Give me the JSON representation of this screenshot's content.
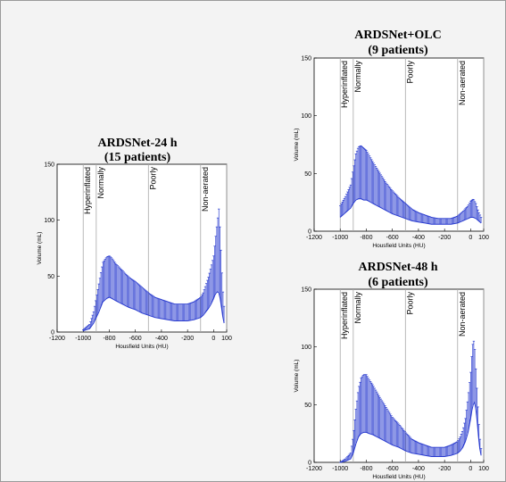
{
  "chart_data": [
    {
      "id": "panel-24h",
      "type": "line",
      "title": "ARDSNet-24 h",
      "subtitle": "(15 patients)",
      "xlabel": "Housfield Units (HU)",
      "ylabel": "Volume (mL)",
      "xlim": [
        -1200,
        100
      ],
      "ylim": [
        0,
        150
      ],
      "xticks": [
        -1200,
        -1000,
        -800,
        -600,
        -400,
        -200,
        0,
        100
      ],
      "yticks": [
        0,
        50,
        100,
        150
      ],
      "grid": false,
      "zones": [
        {
          "label": "Hyperinflated",
          "boundary": -1000
        },
        {
          "label": "Normally",
          "boundary": -900
        },
        {
          "label": "Poorly",
          "boundary": -500
        },
        {
          "label": "Non-aerated",
          "boundary": -100
        },
        {
          "label": "",
          "boundary": 100
        }
      ],
      "series": [
        {
          "x": [
            -1000,
            -950,
            -920,
            -880,
            -850,
            -820,
            -800,
            -780,
            -750,
            -700,
            -650,
            -600,
            -550,
            -500,
            -450,
            -400,
            -350,
            -300,
            -250,
            -200,
            -150,
            -100,
            -80,
            -60,
            -40,
            -20,
            0,
            10,
            20,
            30,
            40,
            50,
            60,
            70,
            80
          ],
          "values": [
            1,
            3,
            8,
            18,
            27,
            30,
            31,
            30,
            28,
            25,
            22,
            20,
            17,
            15,
            13,
            12,
            11,
            10,
            10,
            10,
            11,
            13,
            15,
            18,
            21,
            25,
            30,
            33,
            35,
            36,
            35,
            30,
            22,
            14,
            8
          ],
          "error": [
            1,
            4,
            10,
            25,
            35,
            37,
            37,
            36,
            33,
            30,
            27,
            25,
            23,
            20,
            18,
            17,
            16,
            15,
            15,
            15,
            16,
            18,
            20,
            24,
            28,
            33,
            38,
            46,
            55,
            64,
            75,
            60,
            40,
            25,
            15
          ]
        }
      ]
    },
    {
      "id": "panel-olc",
      "type": "line",
      "title": "ARDSNet+OLC",
      "subtitle": "(9 patients)",
      "xlabel": "Housfield Units (HU)",
      "ylabel": "Volume (mL)",
      "xlim": [
        -1200,
        100
      ],
      "ylim": [
        0,
        150
      ],
      "xticks": [
        -1200,
        -1000,
        -800,
        -600,
        -400,
        -200,
        0,
        100
      ],
      "yticks": [
        0,
        50,
        100,
        150
      ],
      "grid": false,
      "zones": [
        {
          "label": "Hyperinflated",
          "boundary": -1000
        },
        {
          "label": "Normally",
          "boundary": -900
        },
        {
          "label": "Poorly",
          "boundary": -500
        },
        {
          "label": "Non-aerated",
          "boundary": -100
        },
        {
          "label": "",
          "boundary": 100
        }
      ],
      "series": [
        {
          "x": [
            -1000,
            -960,
            -920,
            -900,
            -880,
            -860,
            -840,
            -820,
            -800,
            -780,
            -750,
            -700,
            -650,
            -600,
            -550,
            -500,
            -450,
            -400,
            -350,
            -300,
            -250,
            -200,
            -150,
            -100,
            -60,
            -20,
            0,
            20,
            40,
            60,
            80
          ],
          "values": [
            12,
            16,
            20,
            24,
            27,
            28,
            28,
            27,
            27,
            26,
            24,
            21,
            18,
            15,
            13,
            11,
            9,
            8,
            7,
            6,
            6,
            6,
            6,
            7,
            9,
            11,
            12,
            12,
            11,
            9,
            7
          ],
          "error": [
            10,
            14,
            20,
            30,
            40,
            45,
            46,
            45,
            43,
            40,
            36,
            30,
            24,
            20,
            16,
            13,
            10,
            8,
            7,
            6,
            5,
            5,
            5,
            6,
            8,
            11,
            14,
            16,
            13,
            8,
            5
          ]
        }
      ]
    },
    {
      "id": "panel-48h",
      "type": "line",
      "title": "ARDSNet-48 h",
      "subtitle": "(6 patients)",
      "xlabel": "Housfield Units (HU)",
      "ylabel": "Volume (mL)",
      "xlim": [
        -1200,
        100
      ],
      "ylim": [
        0,
        150
      ],
      "xticks": [
        -1200,
        -1000,
        -800,
        -600,
        -400,
        -200,
        0,
        100
      ],
      "yticks": [
        0,
        50,
        100,
        150
      ],
      "grid": false,
      "zones": [
        {
          "label": "Hyperinflated",
          "boundary": -1000
        },
        {
          "label": "Normally",
          "boundary": -900
        },
        {
          "label": "Poorly",
          "boundary": -500
        },
        {
          "label": "Non-aerated",
          "boundary": -100
        },
        {
          "label": "",
          "boundary": 100
        }
      ],
      "series": [
        {
          "x": [
            -1000,
            -960,
            -920,
            -900,
            -880,
            -860,
            -840,
            -820,
            -800,
            -780,
            -750,
            -700,
            -650,
            -600,
            -550,
            -500,
            -450,
            -400,
            -350,
            -300,
            -250,
            -200,
            -150,
            -100,
            -80,
            -60,
            -40,
            -20,
            0,
            10,
            20,
            30,
            40,
            50,
            60,
            70,
            80
          ],
          "values": [
            0,
            1,
            3,
            8,
            16,
            22,
            25,
            26,
            26,
            25,
            24,
            21,
            18,
            15,
            13,
            10,
            8,
            7,
            6,
            5,
            5,
            5,
            6,
            8,
            10,
            13,
            18,
            26,
            38,
            45,
            50,
            52,
            46,
            35,
            22,
            12,
            6
          ],
          "error": [
            0,
            2,
            5,
            15,
            30,
            42,
            48,
            50,
            50,
            47,
            43,
            36,
            30,
            24,
            20,
            16,
            12,
            10,
            9,
            8,
            8,
            8,
            9,
            10,
            12,
            15,
            20,
            30,
            40,
            50,
            57,
            50,
            35,
            25,
            18,
            10,
            6
          ]
        }
      ]
    }
  ]
}
